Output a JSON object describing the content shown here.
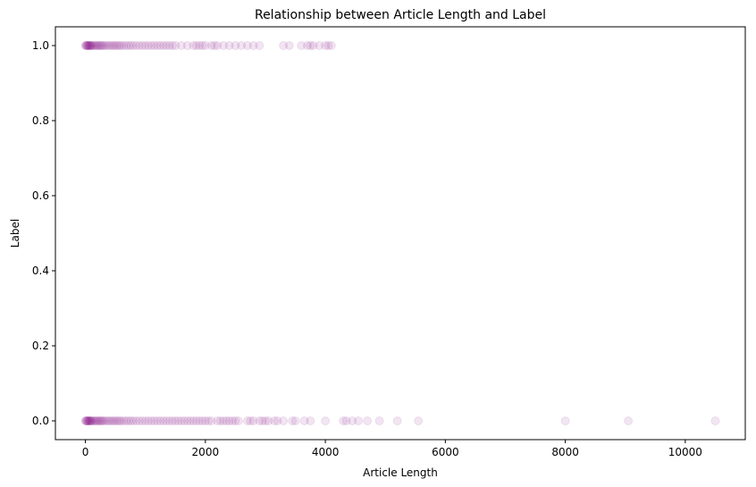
{
  "chart_data": {
    "type": "scatter",
    "title": "Relationship between Article Length and Label",
    "xlabel": "Article Length",
    "ylabel": "Label",
    "xlim": [
      -500,
      11000
    ],
    "ylim": [
      -0.05,
      1.05
    ],
    "xticks": [
      0,
      2000,
      4000,
      6000,
      8000,
      10000
    ],
    "xtick_labels": [
      "0",
      "2000",
      "4000",
      "6000",
      "8000",
      "10000"
    ],
    "yticks": [
      0.0,
      0.2,
      0.4,
      0.6,
      0.8,
      1.0
    ],
    "ytick_labels": [
      "0.0",
      "0.2",
      "0.4",
      "0.6",
      "0.8",
      "1.0"
    ],
    "grid": false,
    "legend": "none",
    "marker_color": "#800080",
    "marker_alpha": 0.1,
    "series": [
      {
        "label_value": 1,
        "x": [
          0,
          10,
          20,
          30,
          40,
          50,
          60,
          70,
          80,
          90,
          100,
          120,
          140,
          160,
          180,
          200,
          220,
          240,
          260,
          280,
          300,
          330,
          360,
          390,
          420,
          450,
          480,
          510,
          540,
          570,
          600,
          640,
          680,
          720,
          760,
          800,
          850,
          900,
          950,
          1000,
          1050,
          1100,
          1150,
          1200,
          1250,
          1300,
          1350,
          1400,
          1450,
          1500,
          1600,
          1700,
          1800,
          1850,
          1900,
          1950,
          2000,
          2100,
          2150,
          2200,
          2300,
          2400,
          2500,
          2600,
          2700,
          2800,
          2900,
          3300,
          3400,
          3600,
          3700,
          3750,
          3800,
          3900,
          4000,
          4050,
          4100
        ]
      },
      {
        "label_value": 0,
        "x": [
          0,
          10,
          20,
          30,
          40,
          50,
          60,
          70,
          80,
          90,
          100,
          120,
          140,
          160,
          180,
          200,
          220,
          240,
          260,
          280,
          300,
          330,
          360,
          390,
          420,
          450,
          480,
          510,
          540,
          570,
          600,
          640,
          680,
          720,
          760,
          800,
          850,
          900,
          950,
          1000,
          1050,
          1100,
          1150,
          1200,
          1250,
          1300,
          1350,
          1400,
          1450,
          1500,
          1550,
          1600,
          1650,
          1700,
          1750,
          1800,
          1850,
          1900,
          1950,
          2000,
          2050,
          2100,
          2200,
          2250,
          2300,
          2350,
          2400,
          2450,
          2500,
          2550,
          2700,
          2750,
          2800,
          2900,
          2950,
          3000,
          3050,
          3150,
          3200,
          3300,
          3450,
          3500,
          3650,
          3750,
          4000,
          4300,
          4350,
          4450,
          4550,
          4700,
          4900,
          5200,
          5550,
          8000,
          9050,
          10500
        ]
      }
    ]
  }
}
